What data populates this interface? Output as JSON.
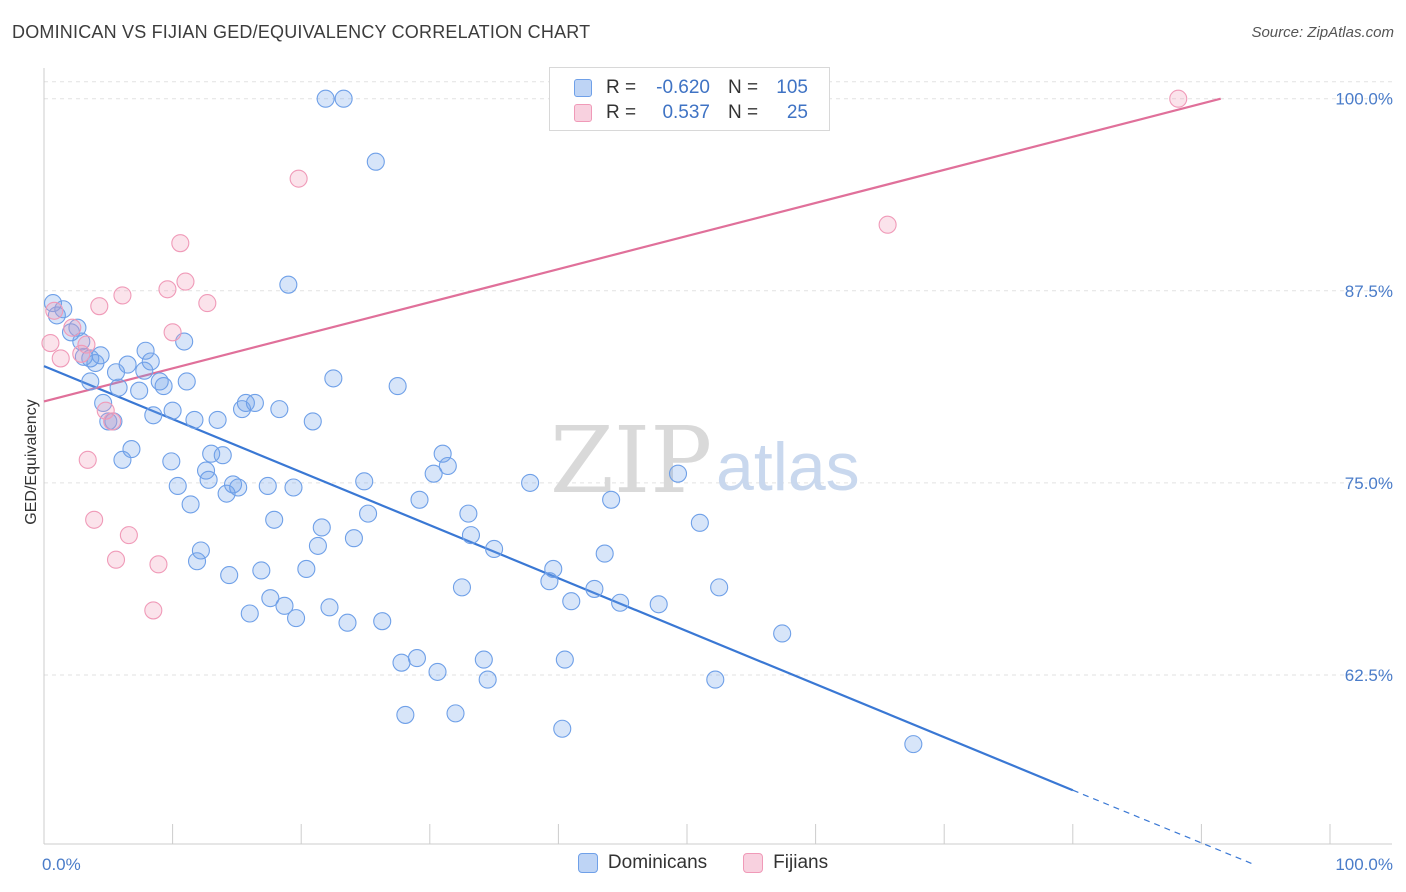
{
  "header": {
    "title": "DOMINICAN VS FIJIAN GED/EQUIVALENCY CORRELATION CHART",
    "source": "Source: ZipAtlas.com"
  },
  "watermark": {
    "zip": "ZIP",
    "atlas": "atlas"
  },
  "legend": {
    "rows": [
      {
        "r_label": "R =",
        "r_value": "-0.620",
        "n_label": "N =",
        "n_value": "105",
        "color": "#6fa0e8"
      },
      {
        "r_label": "R =",
        "r_value": "0.537",
        "n_label": "N =",
        "n_value": "25",
        "color": "#f09ab8"
      }
    ]
  },
  "bottom_legend": [
    {
      "label": "Dominicans",
      "color": "#6fa0e8"
    },
    {
      "label": "Fijians",
      "color": "#f09ab8"
    }
  ],
  "chart_data": {
    "type": "scatter",
    "xlabel": "",
    "ylabel": "GED/Equivalency",
    "xlim": [
      0,
      100
    ],
    "ylim": [
      51.5,
      102
    ],
    "x_tick_labels": [
      {
        "value": 0,
        "label": "0.0%"
      },
      {
        "value": 100,
        "label": "100.0%"
      }
    ],
    "y_ticks": [
      {
        "value": 100,
        "label": "100.0%"
      },
      {
        "value": 87.5,
        "label": "87.5%"
      },
      {
        "value": 75,
        "label": "75.0%"
      },
      {
        "value": 62.5,
        "label": "62.5%"
      }
    ],
    "grid": true,
    "series": [
      {
        "name": "Dominicans",
        "color": "#6fa0e8",
        "trend": {
          "x0": 0,
          "y0": 82.6,
          "x1": 80,
          "y1": 55.0,
          "dash_to": 94,
          "dash_y": 50.2
        },
        "points": [
          [
            0.7,
            86.7
          ],
          [
            1.0,
            85.9
          ],
          [
            1.5,
            86.3
          ],
          [
            2.1,
            84.8
          ],
          [
            2.6,
            85.1
          ],
          [
            2.9,
            84.2
          ],
          [
            3.1,
            83.2
          ],
          [
            3.6,
            83.1
          ],
          [
            3.6,
            81.6
          ],
          [
            4.0,
            82.8
          ],
          [
            4.4,
            83.3
          ],
          [
            4.6,
            80.2
          ],
          [
            5.0,
            79.0
          ],
          [
            5.4,
            79.0
          ],
          [
            5.6,
            82.2
          ],
          [
            5.8,
            81.2
          ],
          [
            6.1,
            76.5
          ],
          [
            6.5,
            82.7
          ],
          [
            6.8,
            77.2
          ],
          [
            7.4,
            81.0
          ],
          [
            7.8,
            82.3
          ],
          [
            7.9,
            83.6
          ],
          [
            8.3,
            82.9
          ],
          [
            8.5,
            79.4
          ],
          [
            9.0,
            81.6
          ],
          [
            9.3,
            81.3
          ],
          [
            9.9,
            76.4
          ],
          [
            10.0,
            79.7
          ],
          [
            10.4,
            74.8
          ],
          [
            10.9,
            84.2
          ],
          [
            11.1,
            81.6
          ],
          [
            11.4,
            73.6
          ],
          [
            11.7,
            79.1
          ],
          [
            11.9,
            69.9
          ],
          [
            12.2,
            70.6
          ],
          [
            12.6,
            75.8
          ],
          [
            12.8,
            75.2
          ],
          [
            13.0,
            76.9
          ],
          [
            13.5,
            79.1
          ],
          [
            13.9,
            76.8
          ],
          [
            14.2,
            74.3
          ],
          [
            14.4,
            69.0
          ],
          [
            14.7,
            74.9
          ],
          [
            15.1,
            74.7
          ],
          [
            15.4,
            79.8
          ],
          [
            15.7,
            80.2
          ],
          [
            16.0,
            66.5
          ],
          [
            16.4,
            80.2
          ],
          [
            16.9,
            69.3
          ],
          [
            17.4,
            74.8
          ],
          [
            17.6,
            67.5
          ],
          [
            17.9,
            72.6
          ],
          [
            18.3,
            79.8
          ],
          [
            18.7,
            67.0
          ],
          [
            19.0,
            87.9
          ],
          [
            19.4,
            74.7
          ],
          [
            19.6,
            66.2
          ],
          [
            20.4,
            69.4
          ],
          [
            20.9,
            79.0
          ],
          [
            21.3,
            70.9
          ],
          [
            21.6,
            72.1
          ],
          [
            21.9,
            100.0
          ],
          [
            22.2,
            66.9
          ],
          [
            22.5,
            81.8
          ],
          [
            23.3,
            100.0
          ],
          [
            23.6,
            65.9
          ],
          [
            24.1,
            71.4
          ],
          [
            24.9,
            75.1
          ],
          [
            25.2,
            73.0
          ],
          [
            25.8,
            95.9
          ],
          [
            26.3,
            66.0
          ],
          [
            27.5,
            81.3
          ],
          [
            27.8,
            63.3
          ],
          [
            28.1,
            59.9
          ],
          [
            29.0,
            63.6
          ],
          [
            29.2,
            73.9
          ],
          [
            30.3,
            75.6
          ],
          [
            30.6,
            62.7
          ],
          [
            31.0,
            76.9
          ],
          [
            31.4,
            76.1
          ],
          [
            32.0,
            60.0
          ],
          [
            32.5,
            68.2
          ],
          [
            33.0,
            73.0
          ],
          [
            33.2,
            71.6
          ],
          [
            34.2,
            63.5
          ],
          [
            34.5,
            62.2
          ],
          [
            35.0,
            70.7
          ],
          [
            37.8,
            75.0
          ],
          [
            39.3,
            68.6
          ],
          [
            39.6,
            69.4
          ],
          [
            40.3,
            59.0
          ],
          [
            40.5,
            63.5
          ],
          [
            41.0,
            67.3
          ],
          [
            42.8,
            68.1
          ],
          [
            43.6,
            70.4
          ],
          [
            44.1,
            73.9
          ],
          [
            44.8,
            67.2
          ],
          [
            47.8,
            67.1
          ],
          [
            49.3,
            75.6
          ],
          [
            51.0,
            72.4
          ],
          [
            52.2,
            62.2
          ],
          [
            52.5,
            68.2
          ],
          [
            57.4,
            65.2
          ],
          [
            67.6,
            58.0
          ]
        ]
      },
      {
        "name": "Fijians",
        "color": "#f09ab8",
        "trend": {
          "x0": 0,
          "y0": 80.3,
          "x1": 91.5,
          "y1": 100.0
        },
        "points": [
          [
            0.5,
            84.1
          ],
          [
            0.8,
            86.2
          ],
          [
            1.3,
            83.1
          ],
          [
            2.2,
            85.1
          ],
          [
            2.9,
            83.4
          ],
          [
            3.3,
            84.0
          ],
          [
            3.4,
            76.5
          ],
          [
            3.9,
            72.6
          ],
          [
            4.3,
            86.5
          ],
          [
            4.8,
            79.7
          ],
          [
            5.3,
            79.0
          ],
          [
            5.6,
            70.0
          ],
          [
            6.1,
            87.2
          ],
          [
            6.6,
            71.6
          ],
          [
            8.5,
            66.7
          ],
          [
            8.9,
            69.7
          ],
          [
            9.6,
            87.6
          ],
          [
            10.0,
            84.8
          ],
          [
            10.6,
            90.6
          ],
          [
            11.0,
            88.1
          ],
          [
            12.7,
            86.7
          ],
          [
            19.8,
            94.8
          ],
          [
            65.6,
            91.8
          ],
          [
            88.2,
            100.0
          ]
        ]
      }
    ]
  }
}
